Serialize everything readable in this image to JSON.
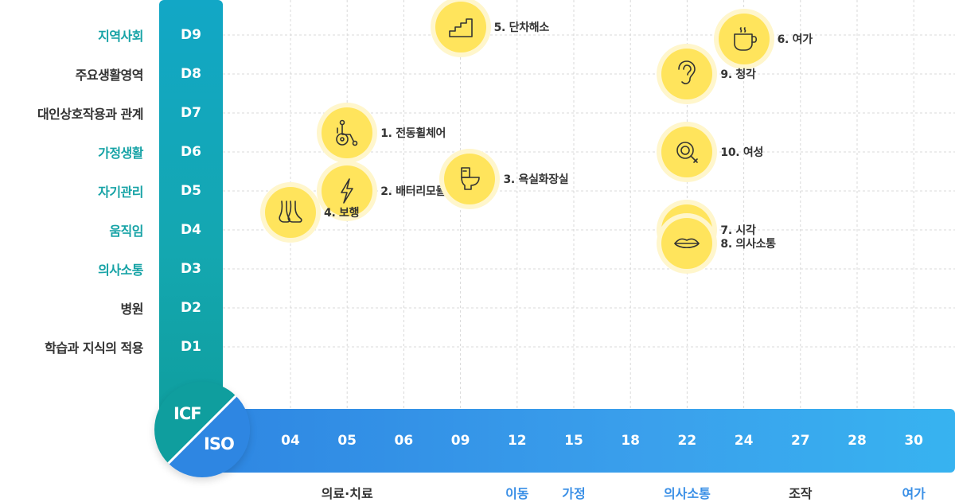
{
  "axis_badge": {
    "y_axis_label": "ICF",
    "x_axis_label": "ISO"
  },
  "y_axis": [
    {
      "code": "D9",
      "label": "지역사회",
      "highlight": true
    },
    {
      "code": "D8",
      "label": "주요생활영역",
      "highlight": false
    },
    {
      "code": "D7",
      "label": "대인상호작용과 관계",
      "highlight": false
    },
    {
      "code": "D6",
      "label": "가정생활",
      "highlight": true
    },
    {
      "code": "D5",
      "label": "자기관리",
      "highlight": true
    },
    {
      "code": "D4",
      "label": "움직임",
      "highlight": true
    },
    {
      "code": "D3",
      "label": "의사소통",
      "highlight": true
    },
    {
      "code": "D2",
      "label": "병원",
      "highlight": false
    },
    {
      "code": "D1",
      "label": "학습과 지식의 적용",
      "highlight": false
    }
  ],
  "x_axis": [
    "04",
    "05",
    "06",
    "09",
    "12",
    "15",
    "18",
    "22",
    "24",
    "27",
    "28",
    "30"
  ],
  "x_categories": [
    {
      "label": "의료·치료",
      "under": "05",
      "highlight": false
    },
    {
      "label": "이동",
      "under": "12",
      "highlight": true
    },
    {
      "label": "가정",
      "under": "15",
      "highlight": true
    },
    {
      "label": "의사소통",
      "under": "22",
      "highlight": true
    },
    {
      "label": "조작",
      "under": "27",
      "highlight": false
    },
    {
      "label": "여가",
      "under": "30",
      "highlight": true
    }
  ],
  "devices": [
    {
      "label": "1. 전동휠체어",
      "icon": "wheelchair-icon",
      "x": "05",
      "y": "D7",
      "y_offset": 0.5
    },
    {
      "label": "2. 배터리모듈",
      "icon": "lightning-icon",
      "x": "05",
      "y": "D5"
    },
    {
      "label": "3. 욕실화장실",
      "icon": "toilet-icon",
      "x": "09.5",
      "y": "D5",
      "y_offset": -0.3
    },
    {
      "label": "4. 보행",
      "icon": "feet-icon",
      "x": "04",
      "y": "D4",
      "y_offset": -0.45
    },
    {
      "label": "5. 단차해소",
      "icon": "stairs-icon",
      "x": "09",
      "y": "D9",
      "y_offset": -0.2
    },
    {
      "label": "6. 여가",
      "icon": "coffee-cup-icon",
      "x": "24",
      "y": "D9",
      "y_offset": 0.1
    },
    {
      "label": "7. 시각",
      "icon": "eye-icon",
      "x": "22",
      "y": "D4"
    },
    {
      "label": "8. 의사소통",
      "icon": "lips-icon",
      "x": "22",
      "y": "D3",
      "y_offset": -0.65
    },
    {
      "label": "9. 청각",
      "icon": "ear-icon",
      "x": "22",
      "y": "D8"
    },
    {
      "label": "10. 여성",
      "icon": "female-symbol-icon",
      "x": "22",
      "y": "D6"
    }
  ],
  "colors": {
    "teal": "#17a3a6",
    "blue": "#3a8fe6",
    "device_fill": "#ffe45c",
    "device_glow": "#fff6cc"
  }
}
